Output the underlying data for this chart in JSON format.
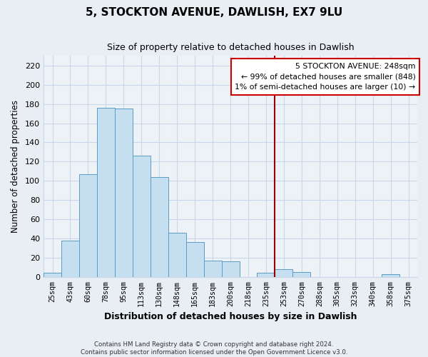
{
  "title": "5, STOCKTON AVENUE, DAWLISH, EX7 9LU",
  "subtitle": "Size of property relative to detached houses in Dawlish",
  "xlabel": "Distribution of detached houses by size in Dawlish",
  "ylabel": "Number of detached properties",
  "bar_labels": [
    "25sqm",
    "43sqm",
    "60sqm",
    "78sqm",
    "95sqm",
    "113sqm",
    "130sqm",
    "148sqm",
    "165sqm",
    "183sqm",
    "200sqm",
    "218sqm",
    "235sqm",
    "253sqm",
    "270sqm",
    "288sqm",
    "305sqm",
    "323sqm",
    "340sqm",
    "358sqm",
    "375sqm"
  ],
  "bar_values": [
    4,
    38,
    107,
    176,
    175,
    126,
    104,
    46,
    36,
    17,
    16,
    0,
    4,
    8,
    5,
    0,
    0,
    0,
    0,
    3,
    0
  ],
  "bar_color": "#c5dff0",
  "bar_edge_color": "#5b9dc9",
  "vline_x_index": 13,
  "vline_color": "#990000",
  "annotation_box_text": "5 STOCKTON AVENUE: 248sqm\n← 99% of detached houses are smaller (848)\n1% of semi-detached houses are larger (10) →",
  "annotation_box_color": "#ffffff",
  "annotation_box_edge_color": "#cc0000",
  "ylim": [
    0,
    230
  ],
  "yticks": [
    0,
    20,
    40,
    60,
    80,
    100,
    120,
    140,
    160,
    180,
    200,
    220
  ],
  "footer_line1": "Contains HM Land Registry data © Crown copyright and database right 2024.",
  "footer_line2": "Contains public sector information licensed under the Open Government Licence v3.0.",
  "bg_color": "#e8eef4",
  "plot_bg_color": "#edf2f7",
  "grid_color": "#c8d8e8"
}
